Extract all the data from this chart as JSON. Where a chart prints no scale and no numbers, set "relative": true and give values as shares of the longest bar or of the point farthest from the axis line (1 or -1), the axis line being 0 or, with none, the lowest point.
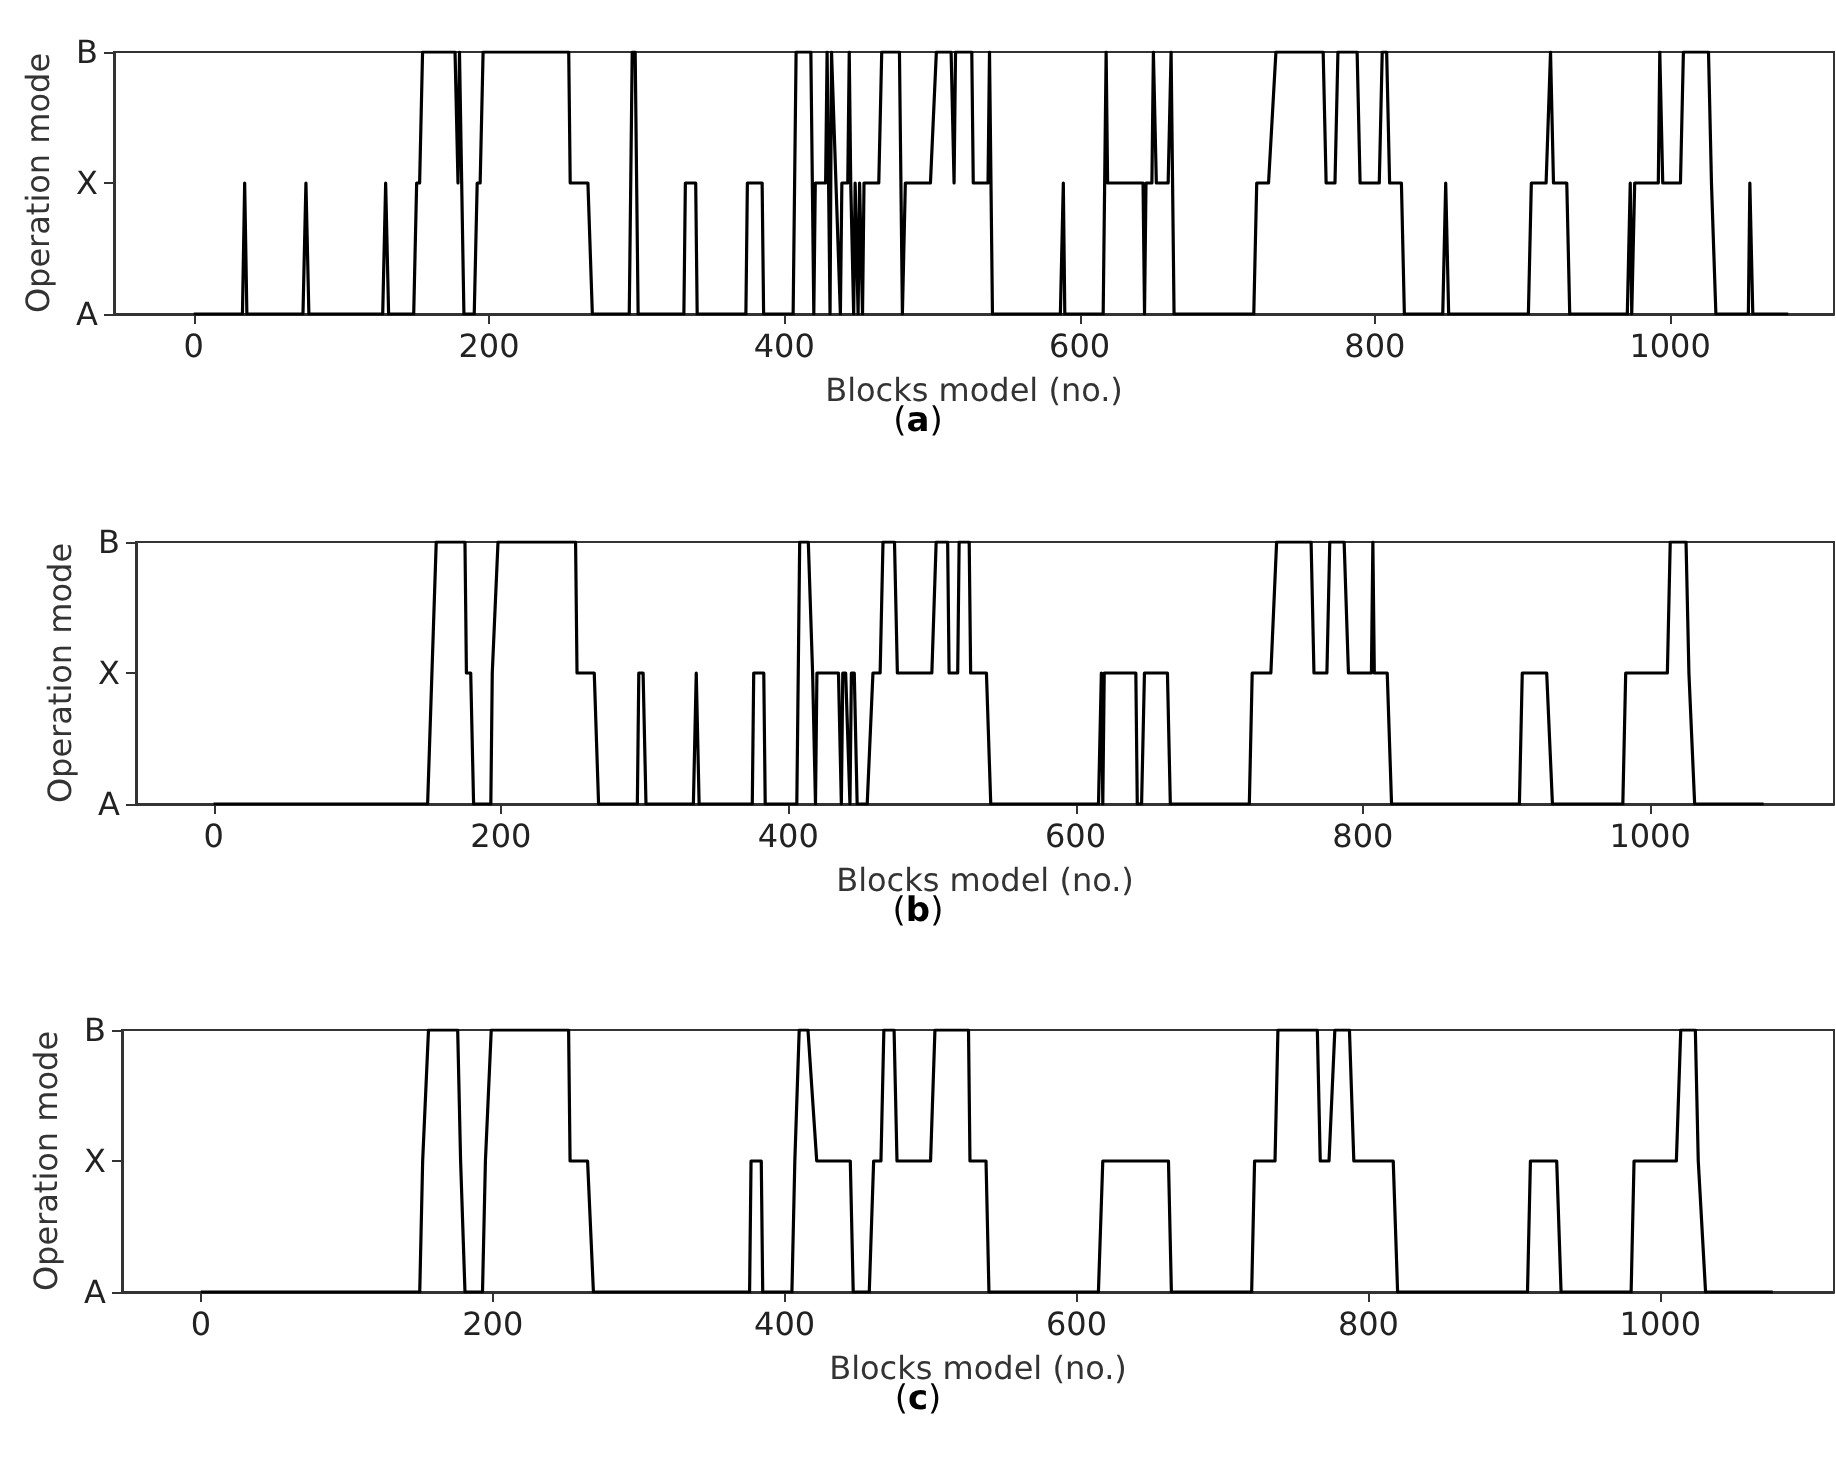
{
  "chart_data": [
    {
      "type": "line",
      "relative": true,
      "xlabel": "Blocks model (no.)",
      "ylabel": "Operation mode",
      "annotations": [
        "(a)"
      ],
      "color": "#000000",
      "marker": "none",
      "xlim": [
        -54,
        1111
      ],
      "xticks": [
        0,
        200,
        400,
        600,
        800,
        1000
      ],
      "y_categories": [
        "B",
        "X",
        "A"
      ],
      "x": [
        0,
        33,
        34.5,
        36,
        74,
        76,
        78,
        128,
        130,
        132,
        149,
        151,
        153,
        155,
        177,
        179,
        180,
        183,
        190,
        192,
        194,
        196,
        254,
        255,
        267,
        270,
        295,
        297,
        299,
        301,
        332,
        333,
        340,
        341,
        374,
        375,
        385,
        386,
        406,
        408,
        418,
        420,
        421,
        428,
        429,
        431,
        432,
        435,
        438,
        439,
        443,
        444,
        445,
        447,
        448,
        450,
        451,
        453,
        454,
        464,
        466,
        478,
        480,
        482,
        499,
        503,
        513,
        515,
        516,
        527,
        528,
        538,
        539,
        541,
        587,
        589,
        590,
        616,
        618,
        619,
        643,
        644,
        645,
        649,
        650,
        652,
        660,
        662,
        664,
        718,
        720,
        728,
        733,
        765,
        767,
        773,
        775,
        788,
        790,
        803,
        805,
        808,
        810,
        818,
        820,
        846,
        848,
        850,
        904,
        906,
        916,
        919,
        921,
        930,
        932,
        971,
        973,
        974,
        976,
        992,
        993,
        995,
        1007,
        1009,
        1026,
        1028,
        1031,
        1053,
        1054,
        1056,
        1080
      ],
      "values": [
        0,
        0,
        0.5,
        0,
        0,
        0.5,
        0,
        0,
        0.5,
        0,
        0,
        0.5,
        0.5,
        1,
        1,
        0.5,
        1,
        0,
        0,
        0.5,
        0.5,
        1,
        1,
        0.5,
        0.5,
        0,
        0,
        1,
        1,
        0,
        0,
        0.5,
        0.5,
        0,
        0,
        0.5,
        0.5,
        0,
        0,
        1,
        1,
        0,
        0.5,
        0.5,
        1,
        0,
        1,
        0.5,
        0,
        0.5,
        0.5,
        1,
        0.5,
        0,
        0.5,
        0,
        0.5,
        0,
        0.5,
        0.5,
        1,
        1,
        0,
        0.5,
        0.5,
        1,
        1,
        0.5,
        1,
        1,
        0.5,
        0.5,
        1,
        0,
        0,
        0.5,
        0,
        0,
        1,
        0.5,
        0.5,
        0,
        0.5,
        0.5,
        1,
        0.5,
        0.5,
        1,
        0,
        0,
        0.5,
        0.5,
        1,
        1,
        0.5,
        0.5,
        1,
        1,
        0.5,
        0.5,
        1,
        1,
        0.5,
        0.5,
        0,
        0,
        0.5,
        0,
        0,
        0.5,
        0.5,
        1,
        0.5,
        0.5,
        0,
        0,
        0.5,
        0,
        0.5,
        0.5,
        1,
        0.5,
        0.5,
        1,
        1,
        0.5,
        0,
        0,
        0.5,
        0,
        0
      ]
    },
    {
      "type": "line",
      "relative": true,
      "xlabel": "Blocks model (no.)",
      "ylabel": "Operation mode",
      "annotations": [
        "(b)"
      ],
      "color": "#000000",
      "marker": "none",
      "xlim": [
        -54,
        1128
      ],
      "xticks": [
        0,
        200,
        400,
        600,
        800,
        1000
      ],
      "y_categories": [
        "B",
        "X",
        "A"
      ],
      "x": [
        0,
        149,
        152,
        155,
        175,
        176,
        179,
        181,
        193,
        194,
        198,
        252,
        253,
        265,
        268,
        295,
        296,
        299,
        301,
        334,
        336,
        338,
        375,
        376,
        383,
        384,
        406,
        408,
        414,
        417,
        419,
        420,
        435,
        437,
        438,
        440,
        443,
        444,
        446,
        448,
        455,
        459,
        464,
        466,
        474,
        476,
        500,
        503,
        511,
        512,
        518,
        519,
        526,
        527,
        538,
        541,
        616,
        618,
        619,
        620,
        642,
        643,
        646,
        648,
        664,
        666,
        721,
        723,
        736,
        740,
        764,
        766,
        775,
        777,
        787,
        790,
        806,
        807,
        808,
        817,
        820,
        909,
        911,
        928,
        932,
        981,
        983,
        1012,
        1014,
        1025,
        1027,
        1031,
        1079
      ],
      "values": [
        0,
        0,
        0.5,
        1,
        1,
        0.5,
        0.5,
        0,
        0,
        0.5,
        1,
        1,
        0.5,
        0.5,
        0,
        0,
        0.5,
        0.5,
        0,
        0,
        0.5,
        0,
        0,
        0.5,
        0.5,
        0,
        0,
        1,
        1,
        0.5,
        0,
        0.5,
        0.5,
        0,
        0.5,
        0.5,
        0,
        0.5,
        0.5,
        0,
        0,
        0.5,
        0.5,
        1,
        1,
        0.5,
        0.5,
        1,
        1,
        0.5,
        0.5,
        1,
        1,
        0.5,
        0.5,
        0,
        0,
        0.5,
        0,
        0.5,
        0.5,
        0,
        0,
        0.5,
        0.5,
        0,
        0,
        0.5,
        0.5,
        1,
        1,
        0.5,
        0.5,
        1,
        1,
        0.5,
        0.5,
        1,
        0.5,
        0.5,
        0,
        0,
        0.5,
        0.5,
        0,
        0,
        0.5,
        0.5,
        1,
        1,
        0.5,
        0,
        0
      ]
    },
    {
      "type": "line",
      "relative": true,
      "xlabel": "Blocks model (no.)",
      "ylabel": "Operation mode",
      "annotations": [
        "(c)"
      ],
      "color": "#000000",
      "marker": "none",
      "xlim": [
        -54,
        1119
      ],
      "xticks": [
        0,
        200,
        400,
        600,
        800,
        1000
      ],
      "y_categories": [
        "B",
        "X",
        "A"
      ],
      "x": [
        0,
        150,
        152,
        156,
        176,
        178,
        181,
        193,
        195,
        199,
        252,
        253,
        265,
        269,
        376,
        377,
        384,
        385,
        405,
        407,
        410,
        416,
        422,
        445,
        447,
        458,
        461,
        466,
        468,
        475,
        477,
        500,
        503,
        526,
        527,
        538,
        540,
        615,
        618,
        663,
        665,
        720,
        722,
        736,
        738,
        765,
        767,
        773,
        777,
        787,
        790,
        817,
        820,
        909,
        911,
        929,
        932,
        980,
        982,
        1011,
        1014,
        1024,
        1026,
        1031,
        1077
      ],
      "values": [
        0,
        0,
        0.5,
        1,
        1,
        0.5,
        0,
        0,
        0.5,
        1,
        1,
        0.5,
        0.5,
        0,
        0,
        0.5,
        0.5,
        0,
        0,
        0.5,
        1,
        1,
        0.5,
        0.5,
        0,
        0,
        0.5,
        0.5,
        1,
        1,
        0.5,
        0.5,
        1,
        1,
        0.5,
        0.5,
        0,
        0,
        0.5,
        0.5,
        0,
        0,
        0.5,
        0.5,
        1,
        1,
        0.5,
        0.5,
        1,
        1,
        0.5,
        0.5,
        0,
        0,
        0.5,
        0.5,
        0,
        0,
        0.5,
        0.5,
        1,
        1,
        0.5,
        0,
        0
      ]
    }
  ]
}
